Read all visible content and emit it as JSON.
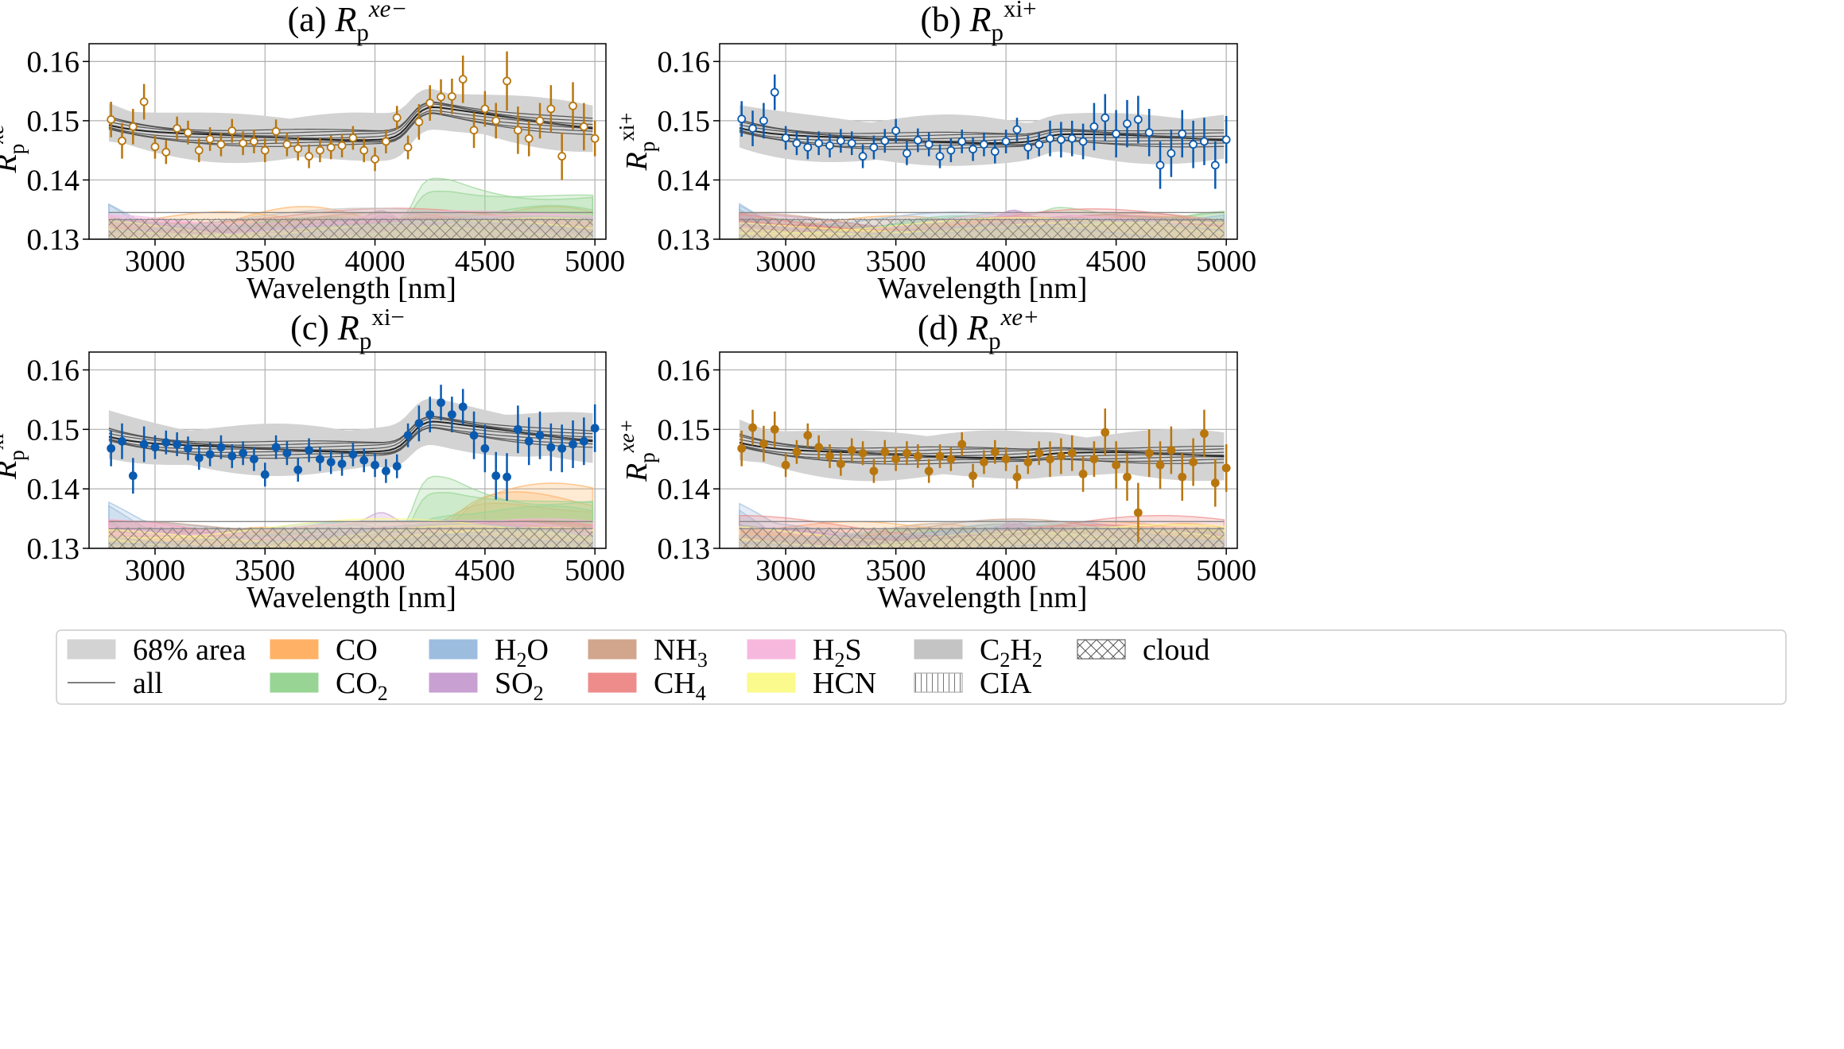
{
  "chart_data": [
    {
      "type": "line",
      "panel": "a",
      "title_prefix": "(a)",
      "sym": "R",
      "sub": "p",
      "sup": "xe−",
      "marker": "open",
      "color": "#b8760e",
      "xlabel": "Wavelength [nm]",
      "xlim": [
        2700,
        5050
      ],
      "ylim": [
        0.13,
        0.163
      ],
      "xticks": [
        "3000",
        "3500",
        "4000",
        "4500",
        "5000"
      ],
      "yticks": [
        "0.13",
        "0.14",
        "0.15",
        "0.16"
      ],
      "baseline": 0.147,
      "feature": 0.0055,
      "co_amp": 0.0,
      "co2_amp": 0.0085,
      "x": [
        2800,
        2850,
        2900,
        2950,
        3000,
        3050,
        3100,
        3150,
        3200,
        3250,
        3300,
        3350,
        3400,
        3450,
        3500,
        3550,
        3600,
        3650,
        3700,
        3750,
        3800,
        3850,
        3900,
        3950,
        4000,
        4050,
        4100,
        4150,
        4200,
        4250,
        4300,
        4350,
        4400,
        4450,
        4500,
        4550,
        4600,
        4650,
        4700,
        4750,
        4800,
        4850,
        4900,
        4950,
        5000
      ],
      "y": [
        0.1502,
        0.1466,
        0.149,
        0.1532,
        0.1456,
        0.1447,
        0.1487,
        0.148,
        0.145,
        0.1469,
        0.146,
        0.1483,
        0.1462,
        0.1465,
        0.145,
        0.1482,
        0.146,
        0.1453,
        0.144,
        0.145,
        0.1455,
        0.1458,
        0.1471,
        0.145,
        0.1435,
        0.1465,
        0.1505,
        0.1455,
        0.1498,
        0.153,
        0.154,
        0.1541,
        0.157,
        0.1484,
        0.152,
        0.15,
        0.1567,
        0.1484,
        0.147,
        0.15,
        0.152,
        0.144,
        0.1525,
        0.149,
        0.147
      ],
      "err": [
        0.003,
        0.003,
        0.003,
        0.003,
        0.002,
        0.002,
        0.002,
        0.002,
        0.002,
        0.002,
        0.002,
        0.002,
        0.002,
        0.002,
        0.002,
        0.002,
        0.002,
        0.002,
        0.002,
        0.002,
        0.002,
        0.002,
        0.002,
        0.002,
        0.002,
        0.002,
        0.002,
        0.002,
        0.003,
        0.003,
        0.003,
        0.003,
        0.004,
        0.003,
        0.003,
        0.003,
        0.005,
        0.004,
        0.003,
        0.003,
        0.004,
        0.004,
        0.004,
        0.004,
        0.003
      ]
    },
    {
      "type": "line",
      "panel": "b",
      "title_prefix": "(b)",
      "sym": "R",
      "sub": "p",
      "sup": "xi+",
      "marker": "open",
      "color": "#0a5bb0",
      "xlabel": "Wavelength [nm]",
      "xlim": [
        2700,
        5050
      ],
      "ylim": [
        0.13,
        0.163
      ],
      "xticks": [
        "3000",
        "3500",
        "4000",
        "4500",
        "5000"
      ],
      "yticks": [
        "0.13",
        "0.14",
        "0.15",
        "0.16"
      ],
      "baseline": 0.1465,
      "feature": 0.0012,
      "co_amp": 0.0,
      "co2_amp": 0.002,
      "x": [
        2800,
        2850,
        2900,
        2950,
        3000,
        3050,
        3100,
        3150,
        3200,
        3250,
        3300,
        3350,
        3400,
        3450,
        3500,
        3550,
        3600,
        3650,
        3700,
        3750,
        3800,
        3850,
        3900,
        3950,
        4000,
        4050,
        4100,
        4150,
        4200,
        4250,
        4300,
        4350,
        4400,
        4450,
        4500,
        4550,
        4600,
        4650,
        4700,
        4750,
        4800,
        4850,
        4900,
        4950,
        5000
      ],
      "y": [
        0.1503,
        0.1487,
        0.15,
        0.1548,
        0.1471,
        0.1462,
        0.1455,
        0.1462,
        0.1458,
        0.1466,
        0.1462,
        0.144,
        0.1455,
        0.1466,
        0.1483,
        0.1445,
        0.1467,
        0.146,
        0.144,
        0.145,
        0.1465,
        0.1452,
        0.146,
        0.1448,
        0.1465,
        0.1485,
        0.1455,
        0.146,
        0.147,
        0.1468,
        0.147,
        0.1465,
        0.149,
        0.1505,
        0.1478,
        0.1495,
        0.1502,
        0.148,
        0.1425,
        0.1445,
        0.1478,
        0.146,
        0.1465,
        0.1425,
        0.1468
      ],
      "err": [
        0.003,
        0.003,
        0.003,
        0.003,
        0.002,
        0.002,
        0.002,
        0.002,
        0.002,
        0.002,
        0.002,
        0.002,
        0.002,
        0.002,
        0.002,
        0.002,
        0.002,
        0.002,
        0.002,
        0.002,
        0.002,
        0.002,
        0.002,
        0.002,
        0.002,
        0.002,
        0.002,
        0.002,
        0.003,
        0.003,
        0.003,
        0.003,
        0.004,
        0.004,
        0.004,
        0.004,
        0.004,
        0.004,
        0.004,
        0.004,
        0.004,
        0.004,
        0.004,
        0.004,
        0.004
      ]
    },
    {
      "type": "line",
      "panel": "c",
      "title_prefix": "(c)",
      "sym": "R",
      "sub": "p",
      "sup": "xi−",
      "marker": "filled",
      "color": "#0a5bb0",
      "xlabel": "Wavelength [nm]",
      "xlim": [
        2700,
        5050
      ],
      "ylim": [
        0.13,
        0.163
      ],
      "xticks": [
        "3000",
        "3500",
        "4000",
        "4500",
        "5000"
      ],
      "yticks": [
        "0.13",
        "0.14",
        "0.15",
        "0.16"
      ],
      "baseline": 0.1465,
      "feature": 0.005,
      "co_amp": 0.0075,
      "co2_amp": 0.011,
      "x": [
        2800,
        2850,
        2900,
        2950,
        3000,
        3050,
        3100,
        3150,
        3200,
        3250,
        3300,
        3350,
        3400,
        3450,
        3500,
        3550,
        3600,
        3650,
        3700,
        3750,
        3800,
        3850,
        3900,
        3950,
        4000,
        4050,
        4100,
        4150,
        4200,
        4250,
        4300,
        4350,
        4400,
        4450,
        4500,
        4550,
        4600,
        4650,
        4700,
        4750,
        4800,
        4850,
        4900,
        4950,
        5000
      ],
      "y": [
        0.1468,
        0.148,
        0.1422,
        0.1475,
        0.147,
        0.1478,
        0.1475,
        0.1468,
        0.1452,
        0.1458,
        0.147,
        0.1455,
        0.146,
        0.145,
        0.1424,
        0.147,
        0.146,
        0.1432,
        0.1465,
        0.145,
        0.1445,
        0.1442,
        0.1458,
        0.1448,
        0.144,
        0.143,
        0.1438,
        0.149,
        0.151,
        0.1525,
        0.1545,
        0.1525,
        0.1538,
        0.149,
        0.1468,
        0.1422,
        0.142,
        0.15,
        0.148,
        0.149,
        0.147,
        0.1468,
        0.1475,
        0.148,
        0.1502
      ],
      "err": [
        0.003,
        0.003,
        0.003,
        0.003,
        0.002,
        0.002,
        0.002,
        0.002,
        0.002,
        0.002,
        0.002,
        0.002,
        0.002,
        0.002,
        0.002,
        0.002,
        0.002,
        0.002,
        0.002,
        0.002,
        0.002,
        0.002,
        0.002,
        0.002,
        0.002,
        0.002,
        0.002,
        0.002,
        0.003,
        0.003,
        0.003,
        0.003,
        0.003,
        0.004,
        0.004,
        0.004,
        0.004,
        0.004,
        0.004,
        0.004,
        0.004,
        0.004,
        0.004,
        0.004,
        0.004
      ]
    },
    {
      "type": "line",
      "panel": "d",
      "title_prefix": "(d)",
      "sym": "R",
      "sub": "p",
      "sup": "xe+",
      "marker": "filled",
      "color": "#b8760e",
      "xlabel": "Wavelength [nm]",
      "xlim": [
        2700,
        5050
      ],
      "ylim": [
        0.13,
        0.163
      ],
      "xticks": [
        "3000",
        "3500",
        "4000",
        "4500",
        "5000"
      ],
      "yticks": [
        "0.13",
        "0.14",
        "0.15",
        "0.16"
      ],
      "baseline": 0.1455,
      "feature": 0.0005,
      "co_amp": 0.0,
      "co2_amp": 0.001,
      "x": [
        2800,
        2850,
        2900,
        2950,
        3000,
        3050,
        3100,
        3150,
        3200,
        3250,
        3300,
        3350,
        3400,
        3450,
        3500,
        3550,
        3600,
        3650,
        3700,
        3750,
        3800,
        3850,
        3900,
        3950,
        4000,
        4050,
        4100,
        4150,
        4200,
        4250,
        4300,
        4350,
        4400,
        4450,
        4500,
        4550,
        4600,
        4650,
        4700,
        4750,
        4800,
        4850,
        4900,
        4950,
        5000
      ],
      "y": [
        0.1468,
        0.1503,
        0.1476,
        0.15,
        0.144,
        0.1462,
        0.149,
        0.147,
        0.1455,
        0.1442,
        0.1465,
        0.146,
        0.143,
        0.1462,
        0.145,
        0.146,
        0.1455,
        0.143,
        0.1455,
        0.145,
        0.1475,
        0.1422,
        0.1445,
        0.1462,
        0.145,
        0.142,
        0.1445,
        0.146,
        0.145,
        0.1455,
        0.146,
        0.1425,
        0.145,
        0.1495,
        0.144,
        0.142,
        0.136,
        0.146,
        0.144,
        0.1465,
        0.142,
        0.1445,
        0.1493,
        0.141,
        0.1435
      ],
      "err": [
        0.003,
        0.003,
        0.003,
        0.003,
        0.002,
        0.002,
        0.002,
        0.002,
        0.002,
        0.002,
        0.002,
        0.002,
        0.002,
        0.002,
        0.002,
        0.002,
        0.002,
        0.002,
        0.002,
        0.002,
        0.002,
        0.002,
        0.002,
        0.002,
        0.002,
        0.002,
        0.002,
        0.002,
        0.003,
        0.003,
        0.003,
        0.003,
        0.003,
        0.004,
        0.004,
        0.004,
        0.005,
        0.004,
        0.004,
        0.004,
        0.004,
        0.004,
        0.004,
        0.004,
        0.004
      ]
    }
  ],
  "legend": [
    {
      "label": "68% area",
      "color": "#d3d3d3",
      "swatch": "fill"
    },
    {
      "label": "all",
      "color": "#555555",
      "swatch": "line"
    },
    {
      "label": "CO",
      "color": "#ffb266",
      "swatch": "fill"
    },
    {
      "label": "CO",
      "sub": "2",
      "color": "#98d595",
      "swatch": "fill"
    },
    {
      "label": "H",
      "sub": "2",
      "tail": "O",
      "color": "#9dbddf",
      "swatch": "fill"
    },
    {
      "label": "SO",
      "sub": "2",
      "color": "#c8a0d2",
      "swatch": "fill"
    },
    {
      "label": "NH",
      "sub": "3",
      "color": "#d2a58d",
      "swatch": "fill"
    },
    {
      "label": "CH",
      "sub": "4",
      "color": "#ee8c8c",
      "swatch": "fill"
    },
    {
      "label": "H",
      "sub": "2",
      "tail": "S",
      "color": "#f7b8de",
      "swatch": "fill"
    },
    {
      "label": "HCN",
      "color": "#fbfa8c",
      "swatch": "fill"
    },
    {
      "label": "C",
      "sub": "2",
      "tail": "H",
      "sub2": "2",
      "color": "#c4c4c4",
      "swatch": "fill"
    },
    {
      "label": "CIA",
      "color": "#aaaaaa",
      "swatch": "vhatch"
    },
    {
      "label": "cloud",
      "color": "#666666",
      "swatch": "xhatch"
    }
  ]
}
